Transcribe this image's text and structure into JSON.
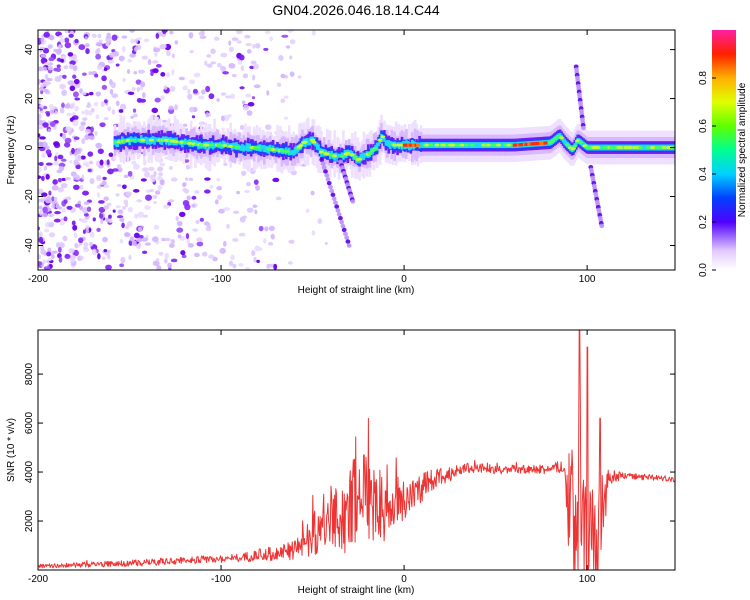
{
  "title": "GN04.2026.046.18.14.C44",
  "colors": {
    "axis": "#000000",
    "snr_line": "#ee3333",
    "background": "#ffffff"
  },
  "chart_data": [
    {
      "type": "heatmap",
      "name": "spectrogram",
      "xlabel": "Height of straight line (km)",
      "ylabel": "Frequency (Hz)",
      "xlim": [
        -200,
        148
      ],
      "ylim": [
        -50,
        48
      ],
      "xticks": [
        -200,
        -100,
        0,
        100
      ],
      "yticks": [
        -40,
        -20,
        0,
        20,
        40
      ],
      "ridge": {
        "x": [
          -158,
          -150,
          -140,
          -130,
          -120,
          -110,
          -100,
          -90,
          -80,
          -70,
          -60,
          -55,
          -50,
          -45,
          -40,
          -35,
          -30,
          -25,
          -20,
          -15,
          -12,
          -10,
          -5,
          0,
          10,
          20,
          40,
          60,
          80,
          85,
          88,
          92,
          95,
          100,
          110,
          148
        ],
        "freq": [
          2,
          3,
          3,
          3,
          2,
          1,
          1,
          0,
          0,
          -1,
          -2,
          2,
          3,
          -2,
          -3,
          -4,
          -2,
          -5,
          -3,
          0,
          5,
          2,
          1,
          1,
          1,
          1,
          1,
          1,
          2,
          5,
          2,
          -1,
          3,
          0,
          0,
          0
        ]
      },
      "strong_band": [
        [
          0,
          8
        ],
        [
          60,
          78
        ]
      ],
      "noise_region": [
        -200,
        -60
      ],
      "streaks": [
        {
          "x": [
            -45,
            -30
          ],
          "freq": [
            -5,
            -40
          ]
        },
        {
          "x": [
            -35,
            -28
          ],
          "freq": [
            -5,
            -22
          ]
        },
        {
          "x": [
            94,
            98
          ],
          "freq": [
            33,
            8
          ]
        },
        {
          "x": [
            102,
            108
          ],
          "freq": [
            -8,
            -32
          ]
        }
      ],
      "colorbar": {
        "label": "Normalized spectral amplitude",
        "ticks": [
          "0.0",
          "0.2",
          "0.4",
          "0.6",
          "0.8"
        ],
        "range": [
          0,
          1
        ]
      }
    },
    {
      "type": "line",
      "name": "snr",
      "xlabel": "Height of straight line (km)",
      "ylabel": "SNR (10 * v/v)",
      "xlim": [
        -200,
        148
      ],
      "ylim": [
        0,
        9800
      ],
      "xticks": [
        -200,
        -100,
        0,
        100
      ],
      "yticks": [
        2000,
        4000,
        6000,
        8000
      ],
      "series": [
        {
          "name": "SNR",
          "x": [
            -200,
            -180,
            -160,
            -140,
            -120,
            -100,
            -90,
            -80,
            -70,
            -60,
            -55,
            -50,
            -45,
            -40,
            -35,
            -30,
            -25,
            -22,
            -20,
            -15,
            -10,
            -5,
            0,
            10,
            20,
            30,
            40,
            50,
            60,
            70,
            80,
            88,
            90,
            94,
            96,
            98,
            100,
            104,
            108,
            112,
            120,
            130,
            140,
            148
          ],
          "y": [
            150,
            200,
            250,
            300,
            400,
            450,
            500,
            600,
            700,
            800,
            1100,
            1500,
            1800,
            2000,
            2200,
            2400,
            3000,
            3500,
            2800,
            2700,
            2600,
            2700,
            2900,
            3400,
            3800,
            4100,
            4200,
            4100,
            4100,
            4100,
            4100,
            4300,
            2500,
            1200,
            3000,
            800,
            1500,
            1000,
            2000,
            3800,
            3850,
            3800,
            3750,
            3700
          ],
          "amp": [
            80,
            100,
            120,
            140,
            150,
            160,
            170,
            250,
            300,
            400,
            600,
            900,
            1200,
            1500,
            1600,
            1700,
            2000,
            2200,
            1800,
            1600,
            1400,
            1200,
            900,
            600,
            400,
            250,
            200,
            180,
            180,
            180,
            180,
            300,
            2500,
            2500,
            3500,
            3000,
            3500,
            2500,
            2000,
            300,
            150,
            120,
            120,
            120
          ],
          "spikes": [
            {
              "x": -22,
              "y": 4700
            },
            {
              "x": 96,
              "y": 9800
            },
            {
              "x": 100,
              "y": 9100
            },
            {
              "x": 107,
              "y": 6200
            }
          ]
        }
      ]
    }
  ]
}
